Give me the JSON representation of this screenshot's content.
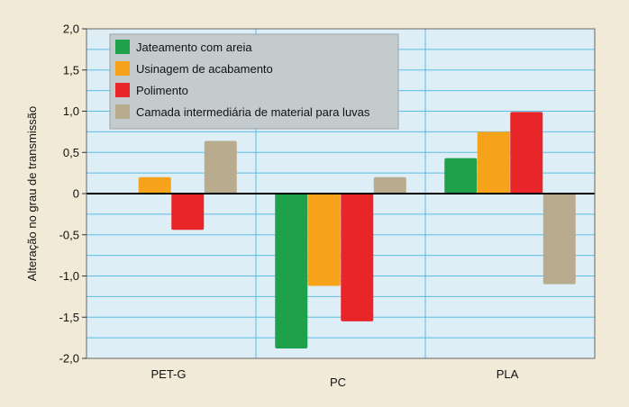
{
  "chart_data": {
    "type": "bar",
    "title": "",
    "xlabel": "",
    "ylabel": "Alteração no grau de transmissão",
    "categories": [
      "PET-G",
      "PC",
      "PLA"
    ],
    "ylim": [
      -2.0,
      2.0
    ],
    "yticks": [
      2.0,
      1.5,
      1.0,
      0.5,
      0,
      -0.5,
      -1.0,
      -1.5,
      -2.0
    ],
    "ytick_labels": [
      "2,0",
      "1,5",
      "1,0",
      "0,5",
      "0",
      "-0,5",
      "-1,0",
      "-1,5",
      "-2,0"
    ],
    "grid": true,
    "legend_position": "top-left",
    "series": [
      {
        "name": "Jateamento com areia",
        "color": "#1fa04a",
        "values": [
          null,
          -1.88,
          0.43
        ]
      },
      {
        "name": "Usinagem de acabamento",
        "color": "#f7a21b",
        "values": [
          0.2,
          -1.12,
          0.75
        ]
      },
      {
        "name": "Polimento",
        "color": "#e8262a",
        "values": [
          -0.44,
          -1.55,
          0.99
        ]
      },
      {
        "name": "Camada intermediária de material para luvas",
        "color": "#b9ab8e",
        "values": [
          0.64,
          0.2,
          -1.1
        ]
      }
    ]
  }
}
